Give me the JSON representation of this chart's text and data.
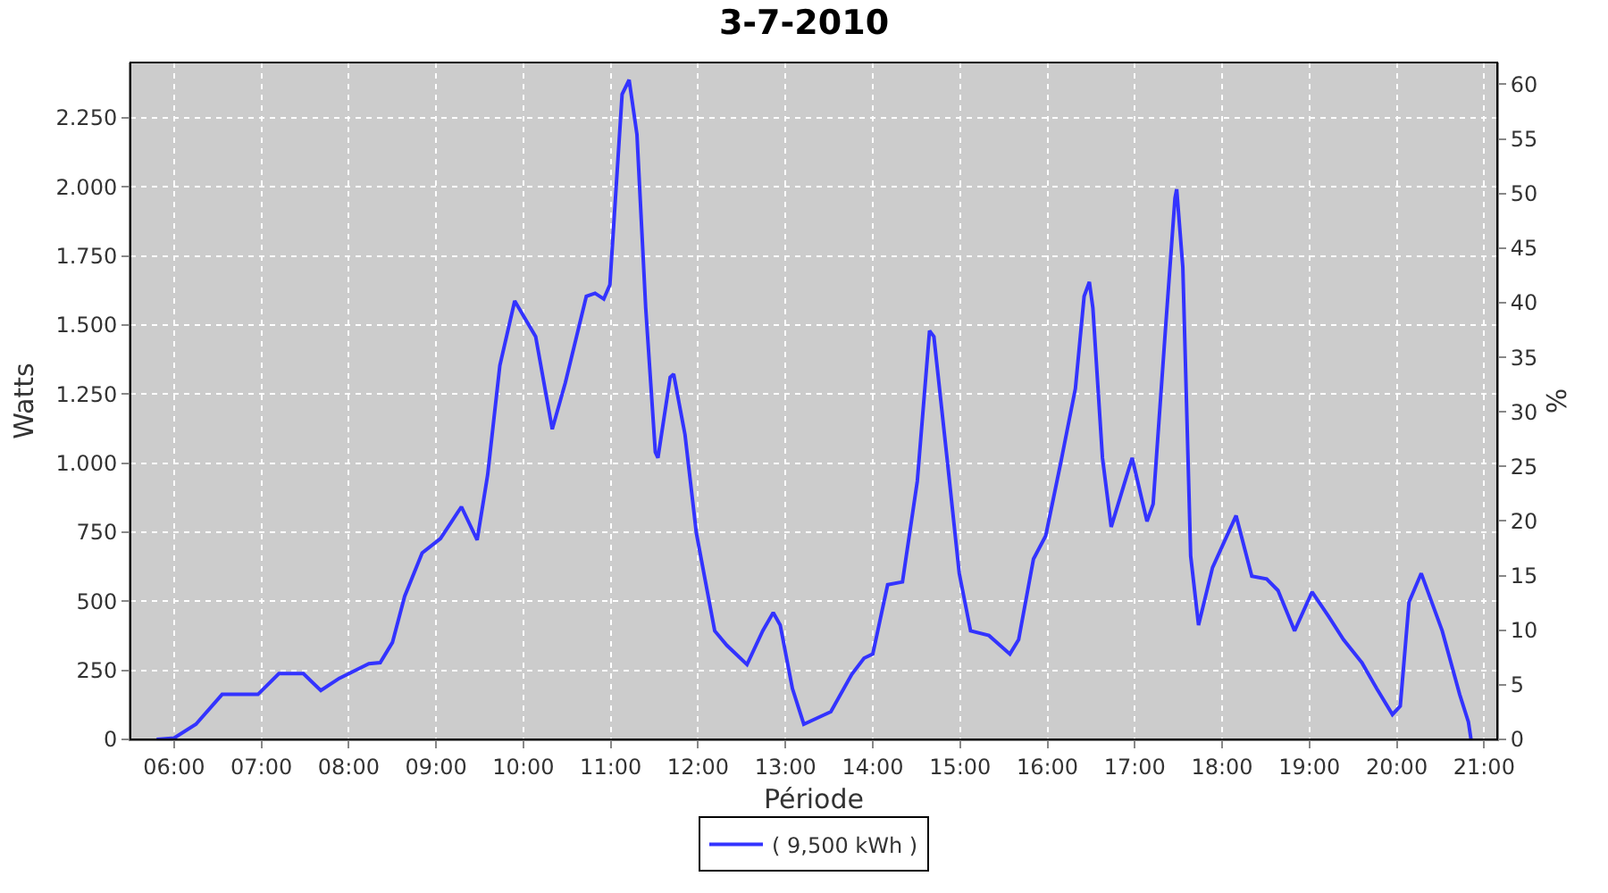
{
  "chart_data": {
    "type": "line",
    "title": "3-7-2010",
    "xlabel": "Période",
    "ylabel": "Watts",
    "y2label": "%",
    "x": [
      5.8,
      6.0,
      6.25,
      6.55,
      6.96,
      7.2,
      7.48,
      7.68,
      7.89,
      8.23,
      8.36,
      8.5,
      8.64,
      8.84,
      9.05,
      9.29,
      9.47,
      9.59,
      9.73,
      9.9,
      10.14,
      10.33,
      10.48,
      10.72,
      10.82,
      10.92,
      10.99,
      11.13,
      11.21,
      11.3,
      11.4,
      11.51,
      11.54,
      11.68,
      11.72,
      11.85,
      11.98,
      12.19,
      12.33,
      12.56,
      12.74,
      12.86,
      12.94,
      13.08,
      13.21,
      13.52,
      13.76,
      13.9,
      14.0,
      14.17,
      14.34,
      14.51,
      14.65,
      14.7,
      14.85,
      14.99,
      15.12,
      15.33,
      15.57,
      15.67,
      15.84,
      15.98,
      16.15,
      16.32,
      16.42,
      16.48,
      16.52,
      16.63,
      16.73,
      16.87,
      16.97,
      17.14,
      17.21,
      17.35,
      17.46,
      17.48,
      17.55,
      17.64,
      17.73,
      17.89,
      18.16,
      18.34,
      18.51,
      18.64,
      18.83,
      19.03,
      19.22,
      19.39,
      19.6,
      19.77,
      19.95,
      20.04,
      20.14,
      20.28,
      20.52,
      20.72,
      20.82,
      20.85
    ],
    "series": [
      {
        "name": "( 9,500 kWh )",
        "color": "#3333ff",
        "values": [
          0,
          5,
          55,
          163,
          163,
          238,
          238,
          177,
          221,
          274,
          278,
          351,
          518,
          675,
          727,
          842,
          722,
          957,
          1353,
          1587,
          1458,
          1123,
          1291,
          1604,
          1615,
          1594,
          1646,
          2335,
          2387,
          2189,
          1562,
          1040,
          1019,
          1311,
          1322,
          1103,
          747,
          393,
          340,
          271,
          393,
          459,
          414,
          184,
          55,
          100,
          236,
          294,
          309,
          560,
          570,
          935,
          1479,
          1458,
          1019,
          601,
          393,
          376,
          309,
          361,
          653,
          737,
          998,
          1270,
          1604,
          1656,
          1562,
          1019,
          769,
          915,
          1019,
          789,
          852,
          1479,
          1959,
          1991,
          1709,
          664,
          414,
          622,
          810,
          591,
          581,
          539,
          393,
          534,
          445,
          361,
          278,
          184,
          90,
          121,
          497,
          601,
          393,
          163,
          63,
          0
        ]
      }
    ],
    "xlim": [
      5.5,
      21.15
    ],
    "xticks": [
      {
        "value": 6,
        "label": "06:00"
      },
      {
        "value": 7,
        "label": "07:00"
      },
      {
        "value": 8,
        "label": "08:00"
      },
      {
        "value": 9,
        "label": "09:00"
      },
      {
        "value": 10,
        "label": "10:00"
      },
      {
        "value": 11,
        "label": "11:00"
      },
      {
        "value": 12,
        "label": "12:00"
      },
      {
        "value": 13,
        "label": "13:00"
      },
      {
        "value": 14,
        "label": "14:00"
      },
      {
        "value": 15,
        "label": "15:00"
      },
      {
        "value": 16,
        "label": "16:00"
      },
      {
        "value": 17,
        "label": "17:00"
      },
      {
        "value": 18,
        "label": "18:00"
      },
      {
        "value": 19,
        "label": "19:00"
      },
      {
        "value": 20,
        "label": "20:00"
      },
      {
        "value": 21,
        "label": "21:00"
      }
    ],
    "ylim": [
      0,
      2450
    ],
    "yticks": [
      {
        "value": 0,
        "label": "0"
      },
      {
        "value": 250,
        "label": "250"
      },
      {
        "value": 500,
        "label": "500"
      },
      {
        "value": 750,
        "label": "750"
      },
      {
        "value": 1000,
        "label": "1.000"
      },
      {
        "value": 1250,
        "label": "1.250"
      },
      {
        "value": 1500,
        "label": "1.500"
      },
      {
        "value": 1750,
        "label": "1.750"
      },
      {
        "value": 2000,
        "label": "2.000"
      },
      {
        "value": 2250,
        "label": "2.250"
      }
    ],
    "y2lim": [
      0,
      62
    ],
    "y2ticks": [
      0,
      5,
      10,
      15,
      20,
      25,
      30,
      35,
      40,
      45,
      50,
      55,
      60
    ],
    "grid": true,
    "legend": "bottom",
    "marker": "none",
    "line_style": "solid"
  }
}
